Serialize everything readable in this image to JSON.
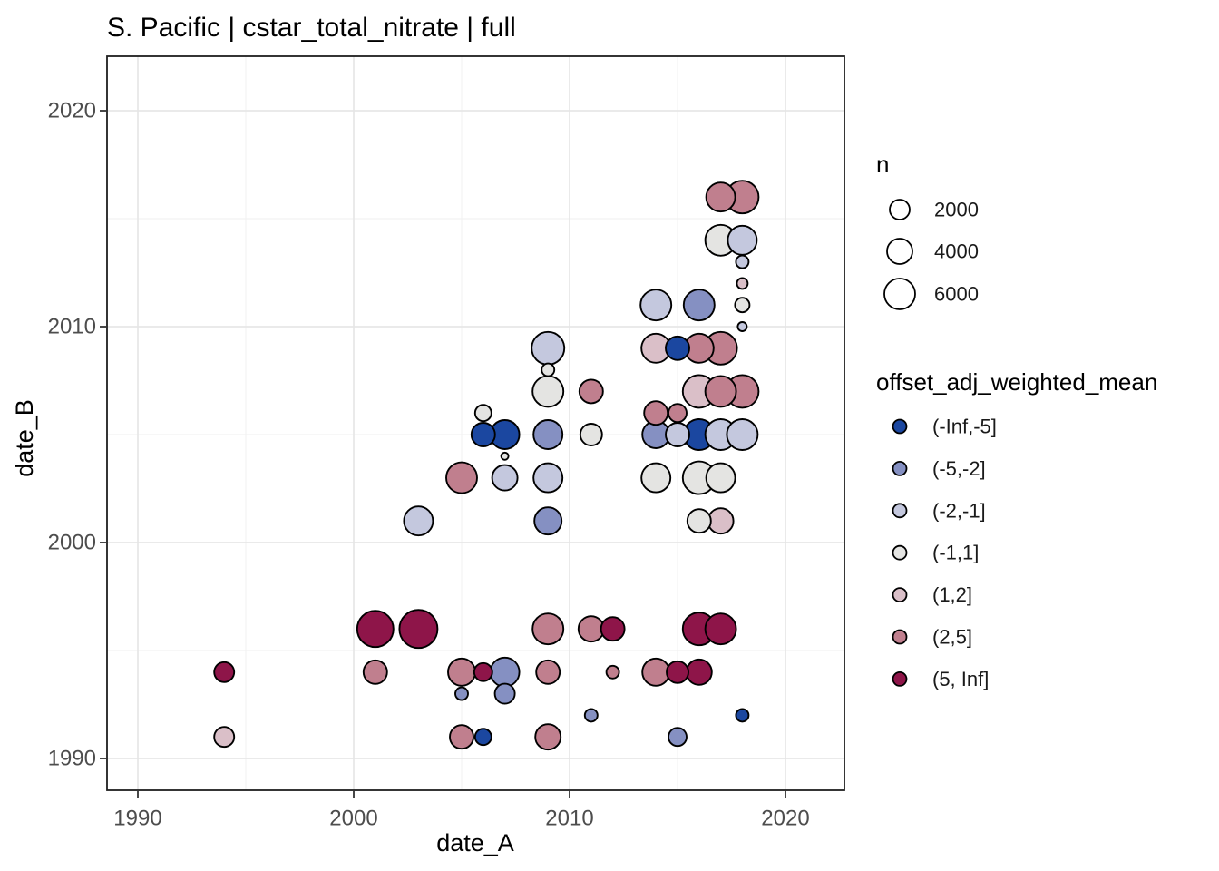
{
  "title": "S. Pacific | cstar_total_nitrate | full",
  "axes": {
    "x": {
      "label": "date_A",
      "ticks": [
        "1990",
        "2000",
        "2010",
        "2020"
      ]
    },
    "y": {
      "label": "date_B",
      "ticks": [
        "1990",
        "2000",
        "2010",
        "2020"
      ]
    }
  },
  "legend_size": {
    "title": "n",
    "entries": [
      {
        "label": "2000",
        "r": 11
      },
      {
        "label": "4000",
        "r": 14
      },
      {
        "label": "6000",
        "r": 17
      }
    ]
  },
  "legend_color": {
    "title": "offset_adj_weighted_mean",
    "entries": [
      {
        "label": "(-Inf,-5]",
        "color": "#1b47a0"
      },
      {
        "label": "(-5,-2]",
        "color": "#8590c2"
      },
      {
        "label": "(-2,-1]",
        "color": "#c4c8de"
      },
      {
        "label": "(-1,1]",
        "color": "#e4e4e2"
      },
      {
        "label": "(1,2]",
        "color": "#dabfc8"
      },
      {
        "label": "(2,5]",
        "color": "#c07f8e"
      },
      {
        "label": "(5, Inf]",
        "color": "#8e1549"
      }
    ]
  },
  "style": {
    "point_stroke": "#000000",
    "panel_border": "#1f1f1f",
    "grid_major": "#e4e4e4",
    "grid_minor": "#f2f2f2",
    "tick_mark_color": "#333333",
    "tick_label_color": "#4d4d4d",
    "background": "#ffffff"
  },
  "chart_data": {
    "type": "scatter",
    "title": "S. Pacific | cstar_total_nitrate | full",
    "xlabel": "date_A",
    "ylabel": "date_B",
    "xlim": [
      1988.6,
      2022.7
    ],
    "ylim": [
      1988.5,
      2022.5
    ],
    "x_ticks": [
      1990,
      2000,
      2010,
      2020
    ],
    "y_ticks": [
      1990,
      2000,
      2010,
      2020
    ],
    "grid": true,
    "legend_position": "right",
    "size_variable": "n",
    "size_legend_values": [
      2000,
      4000,
      6000
    ],
    "color_variable": "offset_adj_weighted_mean",
    "bins": [
      "(-Inf,-5]",
      "(-5,-2]",
      "(-2,-1]",
      "(-1,1]",
      "(1,2]",
      "(2,5]",
      "(5, Inf]"
    ],
    "point_format": "[year_A, year_B, bin_index, radius_px]",
    "points": [
      [
        1994,
        1994,
        6,
        11
      ],
      [
        1994,
        1991,
        4,
        11
      ],
      [
        2001,
        1996,
        6,
        20
      ],
      [
        2003,
        1996,
        6,
        21
      ],
      [
        2009,
        1996,
        5,
        17
      ],
      [
        2011,
        1996,
        5,
        14
      ],
      [
        2012,
        1996,
        6,
        13
      ],
      [
        2016,
        1996,
        6,
        18
      ],
      [
        2017,
        1996,
        6,
        17
      ],
      [
        2001,
        1994,
        5,
        13
      ],
      [
        2005,
        1994,
        5,
        15
      ],
      [
        2006,
        1994,
        6,
        10
      ],
      [
        2007,
        1994,
        1,
        16
      ],
      [
        2009,
        1994,
        5,
        13
      ],
      [
        2012,
        1994,
        5,
        7
      ],
      [
        2014,
        1994,
        5,
        15
      ],
      [
        2015,
        1994,
        6,
        12
      ],
      [
        2016,
        1994,
        6,
        14
      ],
      [
        2005,
        1993,
        1,
        7
      ],
      [
        2007,
        1993,
        1,
        11
      ],
      [
        2011,
        1992,
        1,
        7
      ],
      [
        2018,
        1992,
        0,
        7
      ],
      [
        2005,
        1991,
        5,
        13
      ],
      [
        2006,
        1991,
        0,
        9
      ],
      [
        2009,
        1991,
        5,
        14
      ],
      [
        2015,
        1991,
        1,
        10
      ],
      [
        2003,
        2001,
        2,
        16
      ],
      [
        2009,
        2001,
        1,
        15
      ],
      [
        2016,
        2001,
        3,
        13
      ],
      [
        2017,
        2001,
        4,
        14
      ],
      [
        2005,
        2003,
        5,
        17
      ],
      [
        2007,
        2003,
        2,
        14
      ],
      [
        2009,
        2003,
        2,
        16
      ],
      [
        2014,
        2003,
        3,
        16
      ],
      [
        2016,
        2003,
        3,
        18
      ],
      [
        2017,
        2003,
        3,
        16
      ],
      [
        2007,
        2004,
        3,
        4
      ],
      [
        2006,
        2005,
        0,
        13
      ],
      [
        2007,
        2005,
        0,
        16
      ],
      [
        2009,
        2005,
        1,
        16
      ],
      [
        2011,
        2005,
        3,
        12
      ],
      [
        2014,
        2005,
        1,
        15
      ],
      [
        2015,
        2005,
        2,
        13
      ],
      [
        2016,
        2005,
        0,
        17
      ],
      [
        2017,
        2005,
        2,
        17
      ],
      [
        2018,
        2005,
        2,
        17
      ],
      [
        2006,
        2006,
        3,
        9
      ],
      [
        2014,
        2006,
        5,
        13
      ],
      [
        2015,
        2006,
        5,
        10
      ],
      [
        2009,
        2007,
        3,
        17
      ],
      [
        2011,
        2007,
        5,
        13
      ],
      [
        2016,
        2007,
        4,
        18
      ],
      [
        2017,
        2007,
        5,
        17
      ],
      [
        2018,
        2007,
        5,
        18
      ],
      [
        2009,
        2008,
        3,
        7
      ],
      [
        2009,
        2009,
        2,
        18
      ],
      [
        2014,
        2009,
        4,
        16
      ],
      [
        2015,
        2009,
        0,
        13
      ],
      [
        2016,
        2009,
        5,
        16
      ],
      [
        2017,
        2009,
        5,
        18
      ],
      [
        2018,
        2010,
        2,
        5
      ],
      [
        2014,
        2011,
        2,
        17
      ],
      [
        2016,
        2011,
        1,
        17
      ],
      [
        2018,
        2011,
        3,
        8
      ],
      [
        2018,
        2012,
        4,
        6
      ],
      [
        2018,
        2013,
        2,
        7
      ],
      [
        2017,
        2014,
        3,
        17
      ],
      [
        2018,
        2014,
        2,
        16
      ],
      [
        2017,
        2016,
        5,
        16
      ],
      [
        2018,
        2016,
        5,
        18
      ]
    ]
  }
}
